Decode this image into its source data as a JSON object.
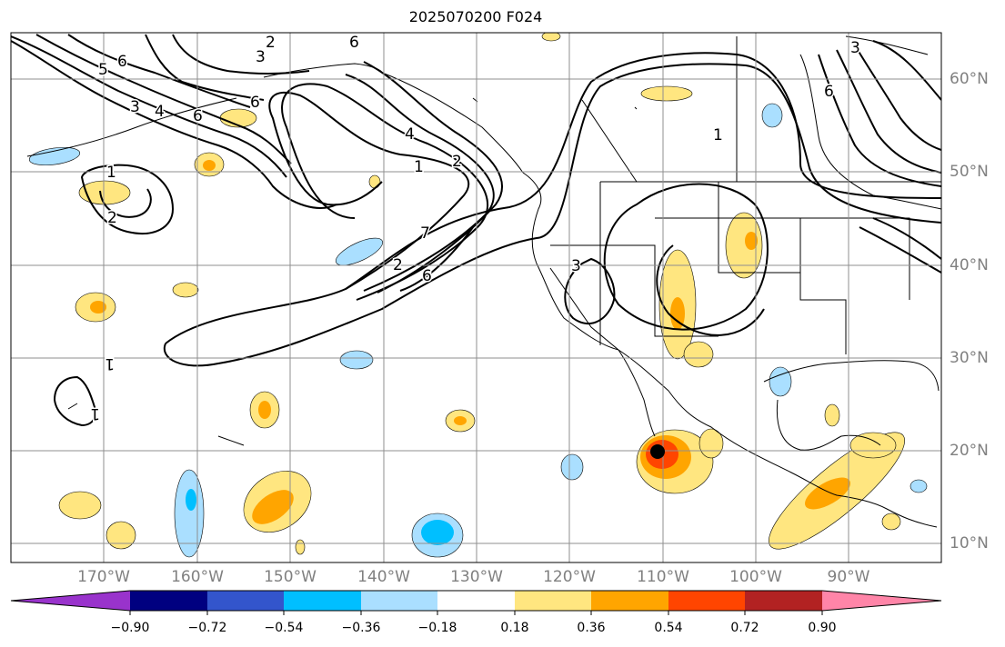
{
  "title": "2025070200 F024",
  "longitude_labels": [
    "170°W",
    "160°W",
    "150°W",
    "140°W",
    "130°W",
    "120°W",
    "110°W",
    "100°W",
    "90°W"
  ],
  "latitude_labels": [
    "60°N",
    "50°N",
    "40°N",
    "30°N",
    "20°N",
    "10°N"
  ],
  "colorbar": {
    "tick_labels": [
      "−0.90",
      "−0.72",
      "−0.54",
      "−0.36",
      "−0.18",
      "0.18",
      "0.36",
      "0.54",
      "0.72",
      "0.90"
    ],
    "colors": [
      "#9933cc",
      "#000080",
      "#3355cc",
      "#00bfff",
      "#aadfff",
      "#ffffff",
      "#ffe680",
      "#ffa500",
      "#ff4500",
      "#b22222",
      "#ff85a8"
    ],
    "extend": "both"
  },
  "contour_labels": [
    "6",
    "3",
    "2",
    "6",
    "5",
    "6",
    "3",
    "4",
    "6",
    "1",
    "2",
    "1",
    "1",
    "2",
    "7",
    "4",
    "2",
    "6",
    "3",
    "1",
    "6",
    "3",
    "1"
  ],
  "marker": "black-dot"
}
